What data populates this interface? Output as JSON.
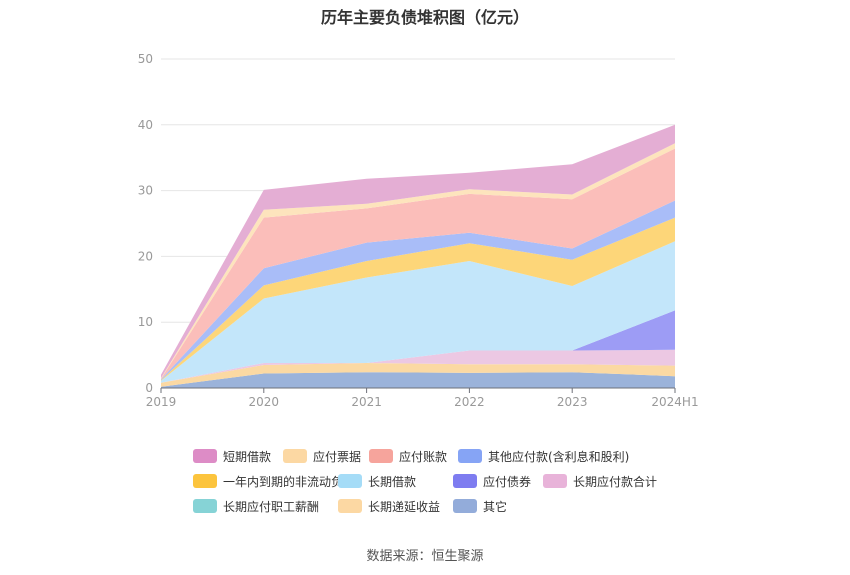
{
  "chart_data": {
    "type": "area",
    "stacked": true,
    "title": "历年主要负债堆积图（亿元）",
    "categories": [
      "2019",
      "2020",
      "2021",
      "2022",
      "2023",
      "2024H1"
    ],
    "ylim": [
      0,
      50
    ],
    "yticks": [
      0,
      10,
      20,
      30,
      40,
      50
    ],
    "grid": true,
    "legend_position": "bottom",
    "series": [
      {
        "name": "其它",
        "color": "#9bb3da",
        "values": [
          0.2,
          2.2,
          2.4,
          2.3,
          2.4,
          1.8
        ]
      },
      {
        "name": "长期递延收益",
        "color": "#fbd9a3",
        "values": [
          0.6,
          1.3,
          1.4,
          1.3,
          1.2,
          1.6
        ]
      },
      {
        "name": "长期应付职工薪酬",
        "color": "#86d3d6",
        "values": [
          0,
          0,
          0,
          0,
          0,
          0
        ]
      },
      {
        "name": "长期应付款合计",
        "color": "#ecc8e3",
        "values": [
          0,
          0.3,
          0,
          2.1,
          2.1,
          2.4
        ]
      },
      {
        "name": "应付债券",
        "color": "#9d9cf5",
        "values": [
          0,
          0,
          0,
          0,
          0,
          6.0
        ]
      },
      {
        "name": "长期借款",
        "color": "#c3e6fa",
        "values": [
          0.3,
          9.8,
          13.0,
          13.6,
          9.8,
          10.5
        ]
      },
      {
        "name": "一年内到期的非流动负债",
        "color": "#fdd679",
        "values": [
          0.1,
          2.0,
          2.5,
          2.7,
          4.0,
          3.6
        ]
      },
      {
        "name": "其他应付款(含利息和股利)",
        "color": "#a9bdf8",
        "values": [
          0.1,
          2.6,
          2.8,
          1.6,
          1.7,
          2.6
        ]
      },
      {
        "name": "应付账款",
        "color": "#fbbeba",
        "values": [
          0.1,
          7.7,
          5.2,
          5.9,
          7.5,
          7.9
        ]
      },
      {
        "name": "应付票据",
        "color": "#fde4bd",
        "values": [
          0.1,
          1.2,
          0.7,
          0.7,
          0.7,
          0.8
        ]
      },
      {
        "name": "短期借款",
        "color": "#e4aed4",
        "values": [
          0.5,
          3.0,
          3.8,
          2.5,
          4.6,
          2.8
        ]
      }
    ]
  },
  "legend": [
    {
      "label": "短期借款",
      "color": "#dd8cc6"
    },
    {
      "label": "应付票据",
      "color": "#fcd8a3"
    },
    {
      "label": "应付账款",
      "color": "#f6a49c"
    },
    {
      "label": "其他应付款(含利息和股利)",
      "color": "#86a4f5"
    },
    {
      "label": "一年内到期的非流动负债",
      "color": "#fcc43d"
    },
    {
      "label": "长期借款",
      "color": "#a5dcf7"
    },
    {
      "label": "应付债券",
      "color": "#7e7cf0"
    },
    {
      "label": "长期应付款合计",
      "color": "#e8b3d9"
    },
    {
      "label": "长期应付职工薪酬",
      "color": "#86d3d6"
    },
    {
      "label": "长期递延收益",
      "color": "#fcd8a3"
    },
    {
      "label": "其它",
      "color": "#93acda"
    }
  ],
  "footer": {
    "source": "数据来源：恒生聚源"
  }
}
